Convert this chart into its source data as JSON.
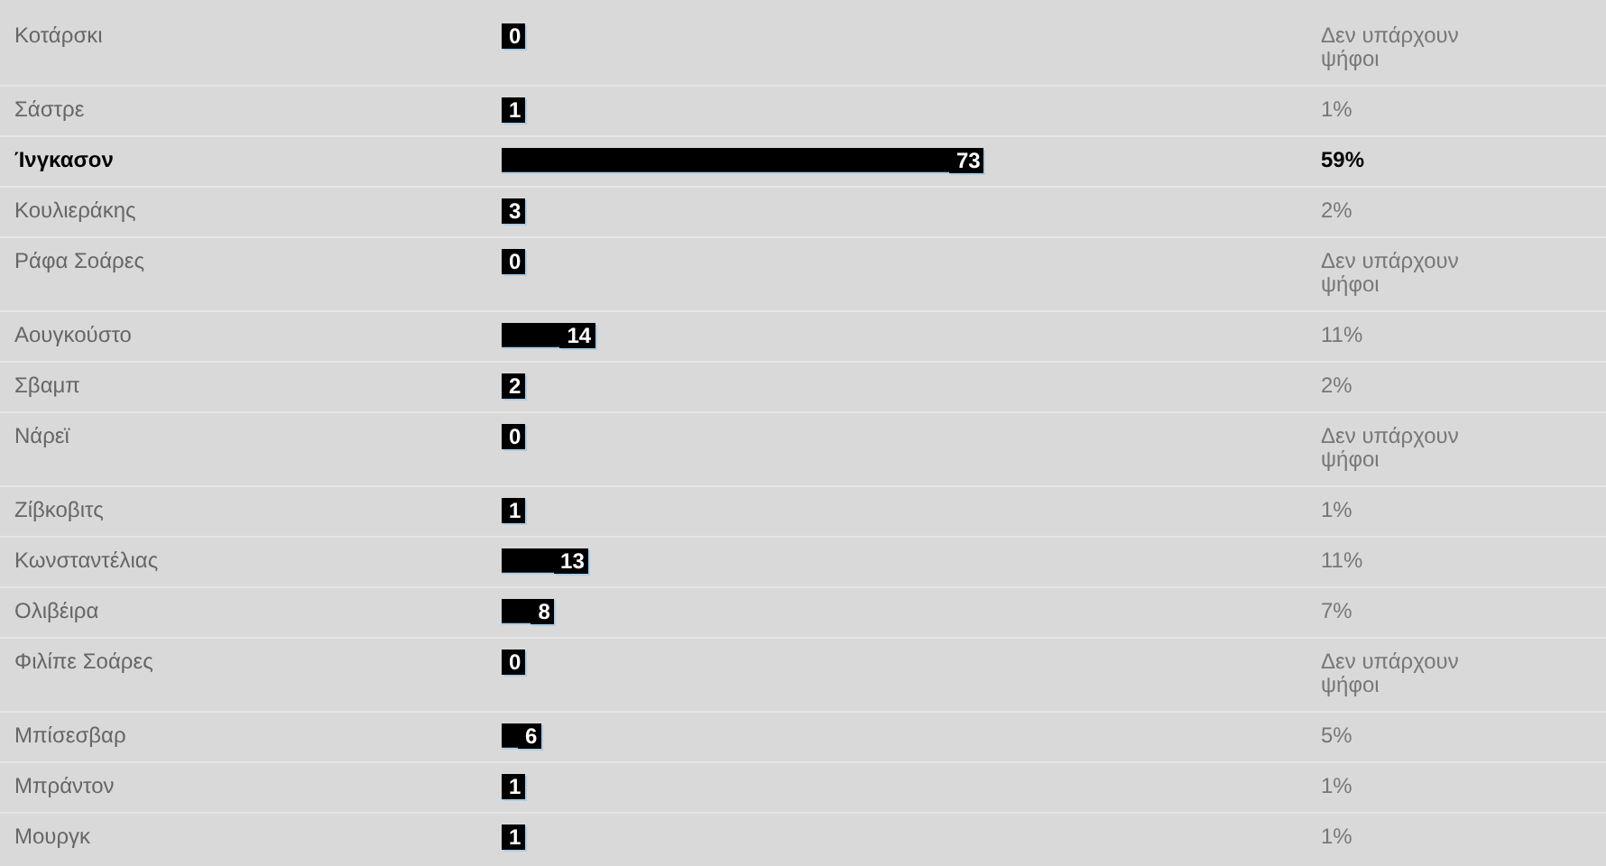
{
  "chart_data": {
    "type": "bar",
    "orientation": "horizontal",
    "categories": [
      "Κοτάρσκι",
      "Σάστρε",
      "Ίνγκασον",
      "Κουλιεράκης",
      "Ράφα Σοάρες",
      "Αουγκούστο",
      "Σβαμπ",
      "Νάρεϊ",
      "Ζίβκοβιτς",
      "Κωνσταντέλιας",
      "Ολιβέιρα",
      "Φιλίπε Σοάρες",
      "Μπίσεσβαρ",
      "Μπράντον",
      "Μουργκ"
    ],
    "values": [
      0,
      1,
      73,
      3,
      0,
      14,
      2,
      0,
      1,
      13,
      8,
      0,
      6,
      1,
      1
    ],
    "color": "#000000",
    "data_labels": true,
    "annotations": [
      "Δεν υπάρχουν ψήφοι",
      "1%",
      "59%",
      "2%",
      "Δεν υπάρχουν ψήφοι",
      "11%",
      "2%",
      "Δεν υπάρχουν ψήφοι",
      "1%",
      "11%",
      "7%",
      "Δεν υπάρχουν ψήφοι",
      "5%",
      "1%",
      "1%"
    ]
  }
}
